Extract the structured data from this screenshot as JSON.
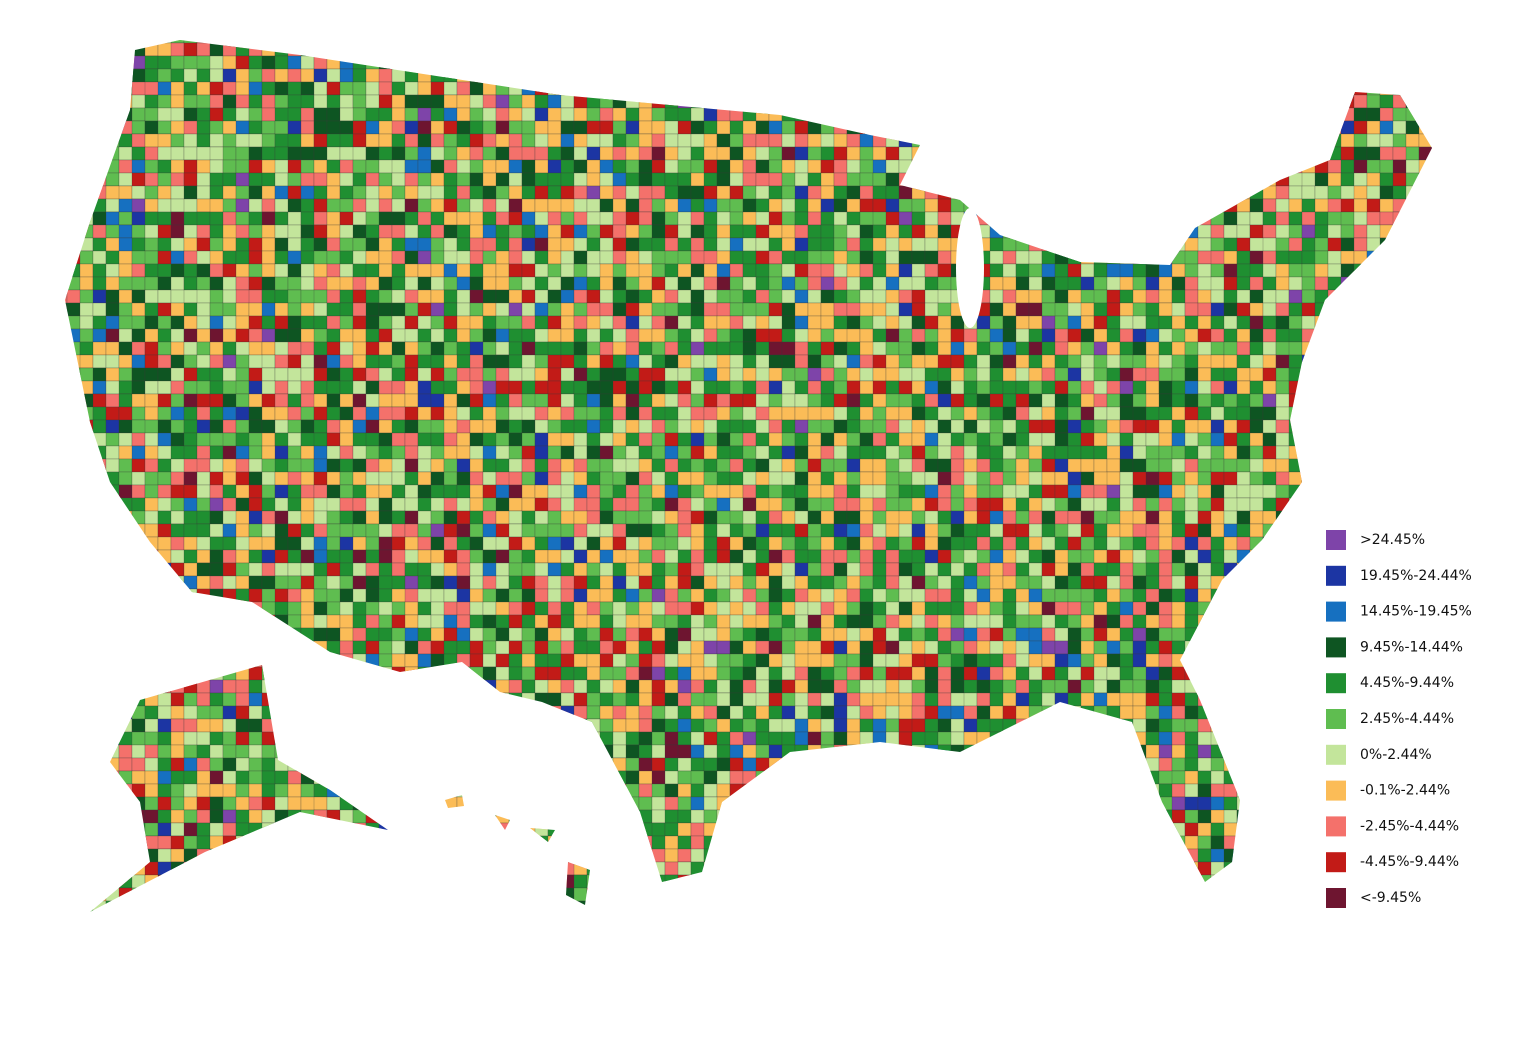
{
  "legend": {
    "items": [
      {
        "label": ">24.45%",
        "color": "#7e44a9"
      },
      {
        "label": "19.45%-24.44%",
        "color": "#1c35a3"
      },
      {
        "label": "14.45%-19.45%",
        "color": "#1670c0"
      },
      {
        "label": "9.45%-14.44%",
        "color": "#0e5522"
      },
      {
        "label": "4.45%-9.44%",
        "color": "#1f8f31"
      },
      {
        "label": "2.45%-4.44%",
        "color": "#5fbd50"
      },
      {
        "label": "0%-2.44%",
        "color": "#c3e59b"
      },
      {
        "label": "-0.1%-2.44%",
        "color": "#fbbc57"
      },
      {
        "label": "-2.45%-4.44%",
        "color": "#f4716b"
      },
      {
        "label": "-4.45%-9.44%",
        "color": "#c21b17"
      },
      {
        "label": "<-9.45%",
        "color": "#6e1530"
      }
    ]
  }
}
